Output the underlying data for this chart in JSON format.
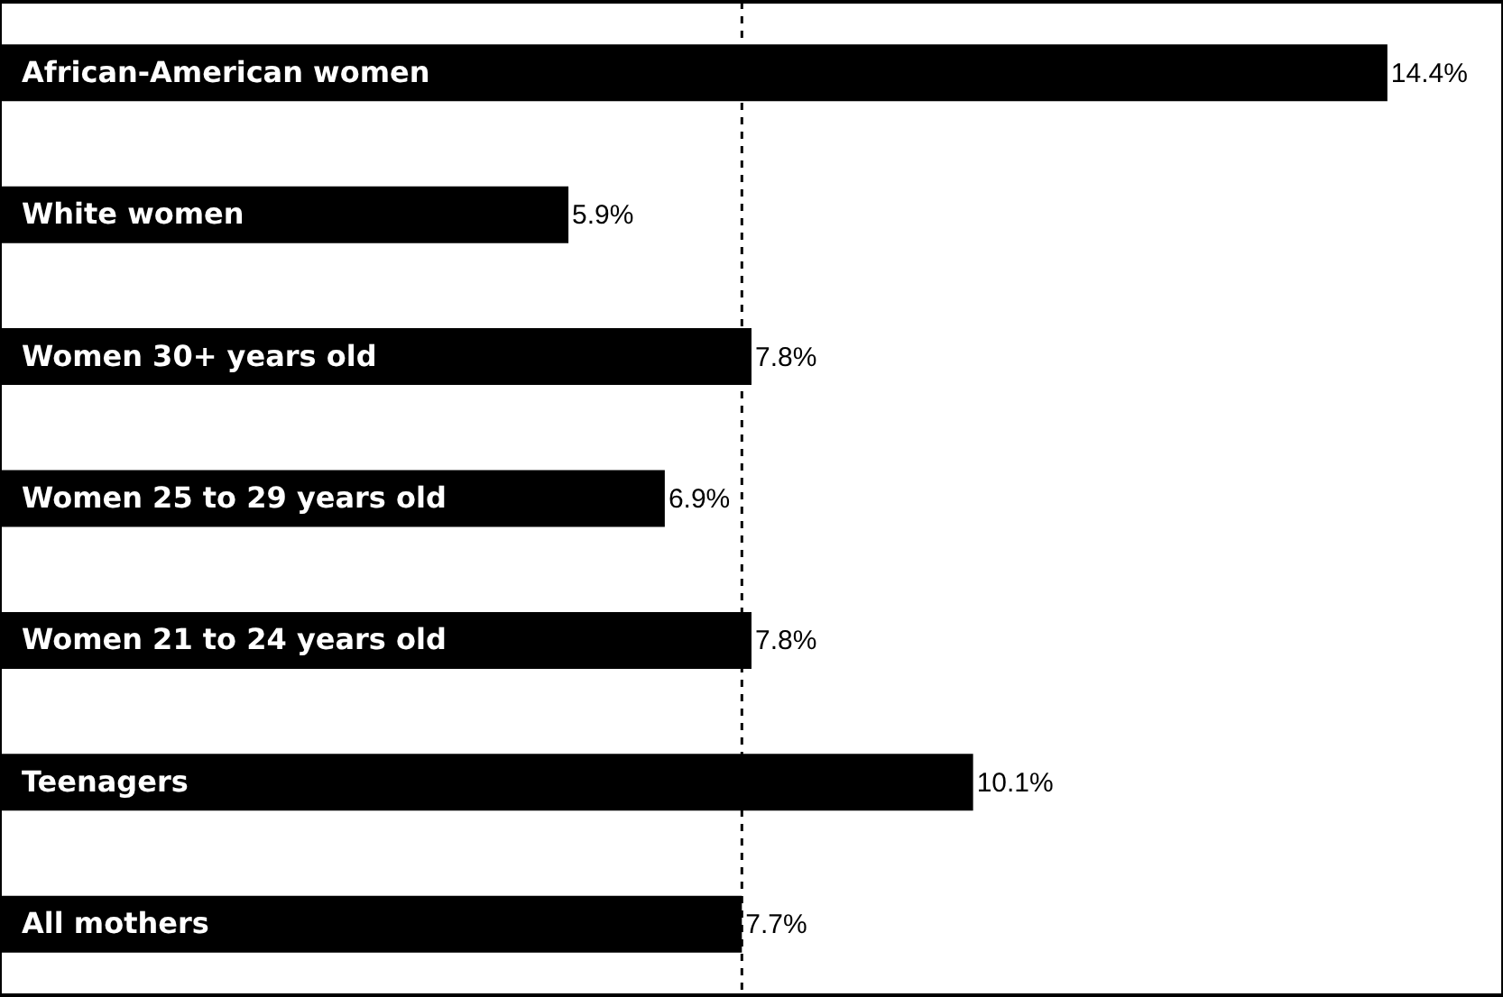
{
  "chart_data": {
    "type": "bar",
    "orientation": "horizontal",
    "categories": [
      "African-American women",
      "White women",
      "Women 30+ years old",
      "Women 25 to 29 years old",
      "Women 21 to 24 years old",
      "Teenagers",
      "All mothers"
    ],
    "values": [
      14.4,
      5.9,
      7.8,
      6.9,
      7.8,
      10.1,
      7.7
    ],
    "value_labels": [
      "14.4%",
      "5.9%",
      "7.8%",
      "6.9%",
      "7.8%",
      "10.1%",
      "7.7%"
    ],
    "color": "#000000",
    "xlim": [
      0,
      15.6
    ],
    "ref_lines": [
      {
        "axis": "x",
        "value": 7.7,
        "color": "#000000",
        "line_style": "dashed"
      }
    ]
  }
}
